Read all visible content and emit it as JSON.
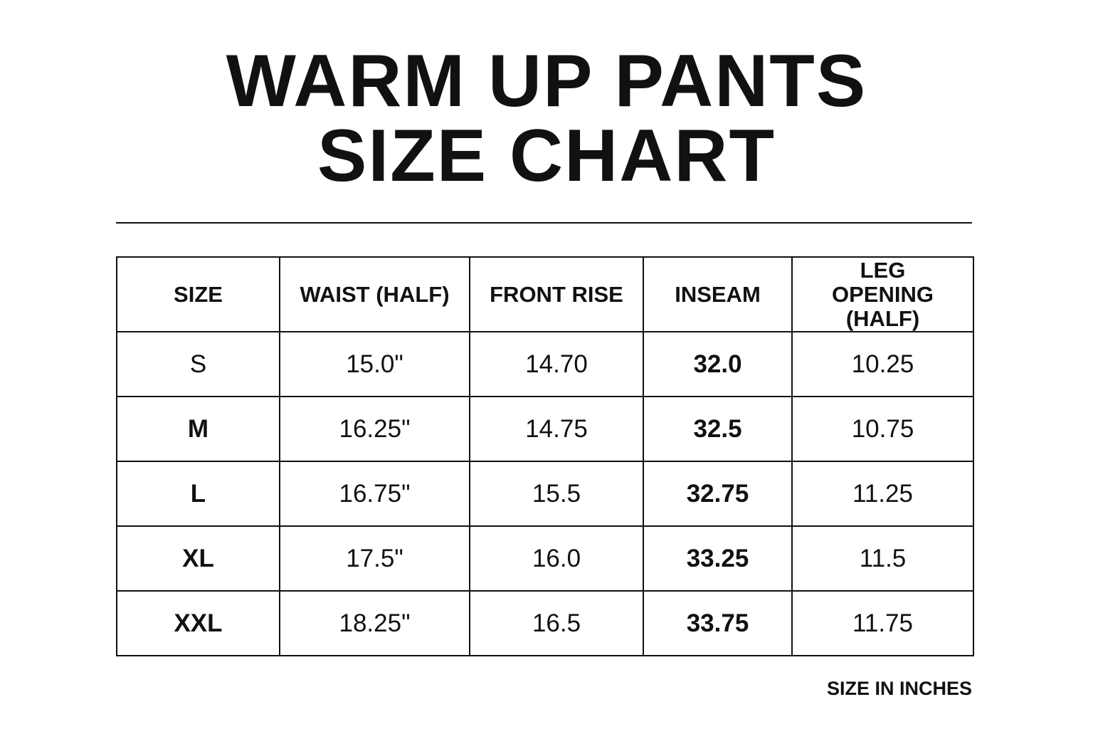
{
  "title": {
    "line1": "WARM UP PANTS",
    "line2": "SIZE CHART"
  },
  "table": {
    "headers": [
      "SIZE",
      "WAIST (HALF)",
      "FRONT RISE",
      "INSEAM",
      "LEG OPENING (HALF)"
    ],
    "rows": [
      [
        "S",
        "15.0\"",
        "14.70",
        "32.0",
        "10.25"
      ],
      [
        "M",
        "16.25\"",
        "14.75",
        "32.5",
        "10.75"
      ],
      [
        "L",
        "16.75\"",
        "15.5",
        "32.75",
        "11.25"
      ],
      [
        "XL",
        "17.5\"",
        "16.0",
        "33.25",
        "11.5"
      ],
      [
        "XXL",
        "18.25\"",
        "16.5",
        "33.75",
        "11.75"
      ]
    ]
  },
  "footer": {
    "note": "SIZE IN INCHES"
  }
}
